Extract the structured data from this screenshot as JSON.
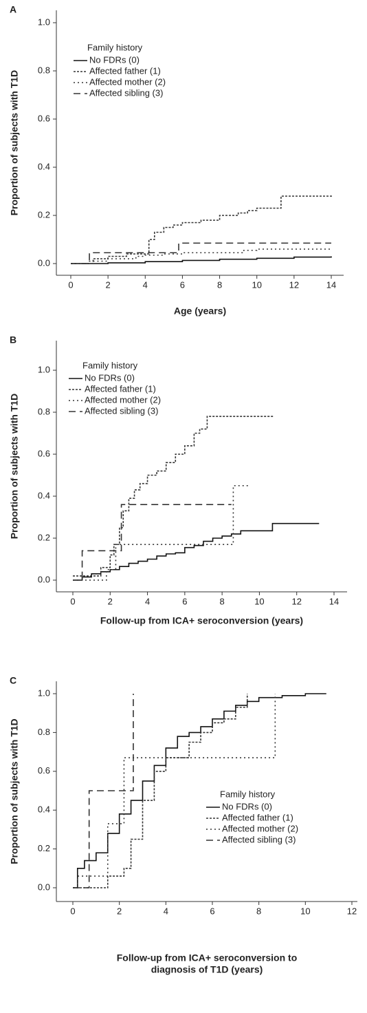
{
  "chart_data": [
    {
      "type": "line",
      "step": true,
      "panel": "A",
      "ylabel": "Proportion of subjects with T1D",
      "xlabel": [
        "Age (years)"
      ],
      "legend_title": "Family history",
      "xlim": [
        -1,
        15
      ],
      "xticks": [
        0,
        2,
        4,
        6,
        8,
        10,
        12,
        14
      ],
      "ylim": [
        -0.05,
        1.05
      ],
      "yticks": [
        {
          "value": 0,
          "label": "0.0"
        },
        {
          "value": 0.2,
          "label": "0.2"
        },
        {
          "value": 0.4,
          "label": "0.4"
        },
        {
          "value": 0.6,
          "label": "0.6"
        },
        {
          "value": 0.8,
          "label": "0.8"
        },
        {
          "value": 1,
          "label": "1.0"
        }
      ],
      "series": [
        {
          "name": "No FDRs (0)",
          "color": "#111",
          "dash": "none",
          "x": [
            0,
            2,
            4,
            6,
            8,
            10,
            12,
            14
          ],
          "values": [
            0,
            0.003,
            0.008,
            0.013,
            0.018,
            0.022,
            0.027,
            0.03
          ]
        },
        {
          "name": "Affected father (1)",
          "color": "#333",
          "dash": "3,2",
          "x": [
            0,
            1,
            1.2,
            2,
            3,
            4,
            4.2,
            4.5,
            5,
            5.5,
            6,
            7,
            8,
            9,
            9.5,
            10,
            11.3,
            14.1
          ],
          "values": [
            0,
            0,
            0.02,
            0.03,
            0.04,
            0.04,
            0.1,
            0.13,
            0.15,
            0.16,
            0.17,
            0.18,
            0.2,
            0.21,
            0.22,
            0.23,
            0.28,
            0.28
          ]
        },
        {
          "name": "Affected mother (2)",
          "color": "#333",
          "dash": "2,4",
          "x": [
            0,
            1,
            2,
            3.5,
            4,
            5,
            6,
            9.3,
            10,
            14
          ],
          "values": [
            0,
            0.01,
            0.02,
            0.03,
            0.035,
            0.04,
            0.045,
            0.055,
            0.06,
            0.06
          ]
        },
        {
          "name": "Affected sibling (3)",
          "color": "#333",
          "dash": "10,6",
          "x": [
            0,
            1,
            3,
            5.8,
            14
          ],
          "values": [
            0,
            0.045,
            0.045,
            0.085,
            0.085
          ]
        }
      ]
    },
    {
      "type": "line",
      "step": true,
      "panel": "B",
      "ylabel": "Proportion of subjects with T1D",
      "xlabel": [
        "Follow-up from ICA+ seroconversion (years)"
      ],
      "legend_title": "Family history",
      "xlim": [
        -1,
        15
      ],
      "xticks": [
        0,
        2,
        4,
        6,
        8,
        10,
        12,
        14
      ],
      "ylim": [
        -0.05,
        1.05
      ],
      "yticks": [
        {
          "value": 0,
          "label": "0.0"
        },
        {
          "value": 0.2,
          "label": "0.2"
        },
        {
          "value": 0.4,
          "label": "0.4"
        },
        {
          "value": 0.6,
          "label": "0.6"
        },
        {
          "value": 0.8,
          "label": "0.8"
        },
        {
          "value": 1,
          "label": "1.0"
        }
      ],
      "series": [
        {
          "name": "No FDRs (0)",
          "color": "#111",
          "dash": "none",
          "x": [
            0,
            0.5,
            1,
            1.5,
            2,
            2.5,
            3,
            3.5,
            4,
            4.5,
            5,
            5.5,
            6,
            6.5,
            7,
            7.5,
            8,
            8.5,
            9,
            10,
            10.7,
            13.2
          ],
          "values": [
            0,
            0.015,
            0.03,
            0.04,
            0.05,
            0.065,
            0.08,
            0.09,
            0.1,
            0.115,
            0.125,
            0.13,
            0.155,
            0.165,
            0.185,
            0.2,
            0.21,
            0.22,
            0.235,
            0.235,
            0.27,
            0.27
          ]
        },
        {
          "name": "Affected father (1)",
          "color": "#333",
          "dash": "3,2",
          "x": [
            0,
            1.5,
            2,
            2.2,
            2.5,
            2.7,
            3,
            3.3,
            3.6,
            4,
            4.5,
            5,
            5.5,
            6,
            6.5,
            6.8,
            7.2,
            10.8
          ],
          "values": [
            0.02,
            0.06,
            0.12,
            0.17,
            0.25,
            0.33,
            0.39,
            0.43,
            0.46,
            0.5,
            0.52,
            0.56,
            0.6,
            0.64,
            0.7,
            0.72,
            0.78,
            0.78
          ]
        },
        {
          "name": "Affected mother (2)",
          "color": "#333",
          "dash": "2,4",
          "x": [
            0,
            1,
            1.8,
            2.3,
            2.6,
            8.6,
            9.5
          ],
          "values": [
            0,
            0,
            0.05,
            0.17,
            0.17,
            0.45,
            0.45
          ]
        },
        {
          "name": "Affected sibling (3)",
          "color": "#333",
          "dash": "10,6",
          "x": [
            0,
            0.5,
            2.6,
            8.5
          ],
          "values": [
            0,
            0.14,
            0.36,
            0.36
          ]
        }
      ]
    },
    {
      "type": "line",
      "step": true,
      "panel": "C",
      "ylabel": "Proportion of subjects with T1D",
      "xlabel": [
        "Follow-up from ICA+ seroconversion to",
        "diagnosis of T1D (years)"
      ],
      "legend_title": "Family history",
      "xlim": [
        -0.7,
        12.5
      ],
      "xticks": [
        0,
        2,
        4,
        6,
        8,
        10,
        12
      ],
      "ylim": [
        -0.05,
        1.05
      ],
      "yticks": [
        {
          "value": 0,
          "label": "0.0"
        },
        {
          "value": 0.2,
          "label": "0.2"
        },
        {
          "value": 0.4,
          "label": "0.4"
        },
        {
          "value": 0.6,
          "label": "0.6"
        },
        {
          "value": 0.8,
          "label": "0.8"
        },
        {
          "value": 1,
          "label": "1.0"
        }
      ],
      "series": [
        {
          "name": "No FDRs (0)",
          "color": "#111",
          "dash": "none",
          "x": [
            0,
            0.2,
            0.5,
            1,
            1.5,
            2,
            2.5,
            3,
            3.5,
            4,
            4.5,
            5,
            5.5,
            6,
            6.5,
            7,
            7.5,
            8,
            9,
            10,
            10.9
          ],
          "values": [
            0,
            0.1,
            0.14,
            0.18,
            0.28,
            0.38,
            0.45,
            0.55,
            0.63,
            0.72,
            0.78,
            0.8,
            0.83,
            0.87,
            0.91,
            0.94,
            0.96,
            0.98,
            0.99,
            1,
            1
          ]
        },
        {
          "name": "Affected father (1)",
          "color": "#333",
          "dash": "3,2",
          "x": [
            0,
            1.5,
            2.2,
            2.5,
            3,
            3.5,
            4,
            5,
            5.5,
            6,
            6.5,
            7,
            7.5
          ],
          "values": [
            0,
            0.06,
            0.1,
            0.25,
            0.45,
            0.6,
            0.67,
            0.75,
            0.8,
            0.85,
            0.87,
            0.93,
            1
          ]
        },
        {
          "name": "Affected mother (2)",
          "color": "#333",
          "dash": "2,4",
          "x": [
            0,
            0.2,
            0.8,
            1.5,
            2.2,
            4,
            8.7
          ],
          "values": [
            0,
            0.06,
            0.06,
            0.33,
            0.67,
            0.67,
            1
          ]
        },
        {
          "name": "Affected sibling (3)",
          "color": "#333",
          "dash": "10,6",
          "x": [
            0,
            0.7,
            2.6
          ],
          "values": [
            0,
            0.5,
            1
          ]
        }
      ]
    }
  ]
}
